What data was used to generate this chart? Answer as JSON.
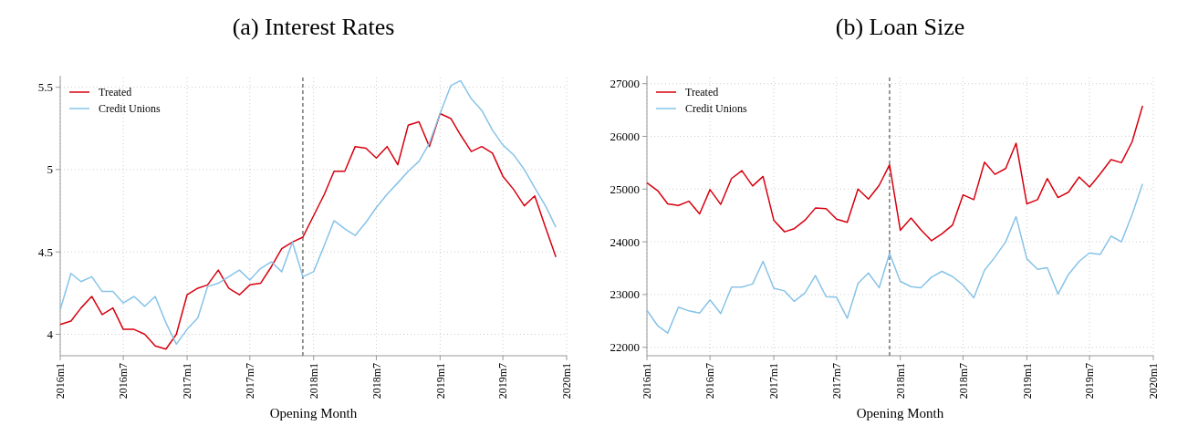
{
  "chart_data": [
    {
      "type": "line",
      "title": "(a) Interest Rates",
      "xlabel": "Opening Month",
      "x": [
        "2016-01",
        "2016-02",
        "2016-03",
        "2016-04",
        "2016-05",
        "2016-06",
        "2016-07",
        "2016-08",
        "2016-09",
        "2016-10",
        "2016-11",
        "2016-12",
        "2017-01",
        "2017-02",
        "2017-03",
        "2017-04",
        "2017-05",
        "2017-06",
        "2017-07",
        "2017-08",
        "2017-09",
        "2017-10",
        "2017-11",
        "2017-12",
        "2018-01",
        "2018-02",
        "2018-03",
        "2018-04",
        "2018-05",
        "2018-06",
        "2018-07",
        "2018-08",
        "2018-09",
        "2018-10",
        "2018-11",
        "2018-12",
        "2019-01",
        "2019-02",
        "2019-03",
        "2019-04",
        "2019-05",
        "2019-06",
        "2019-07",
        "2019-08",
        "2019-09",
        "2019-10",
        "2019-11",
        "2019-12"
      ],
      "xlim": [
        "2016-01",
        "2020-01"
      ],
      "xticks": [
        {
          "value": "2016-01",
          "label": "2016m1"
        },
        {
          "value": "2016-07",
          "label": "2016m7"
        },
        {
          "value": "2017-01",
          "label": "2017m1"
        },
        {
          "value": "2017-07",
          "label": "2017m7"
        },
        {
          "value": "2018-01",
          "label": "2018m1"
        },
        {
          "value": "2018-07",
          "label": "2018m7"
        },
        {
          "value": "2019-01",
          "label": "2019m1"
        },
        {
          "value": "2019-07",
          "label": "2019m7"
        },
        {
          "value": "2020-01",
          "label": "2020m1"
        }
      ],
      "ylim": [
        3.87,
        5.57
      ],
      "yticks": [
        4,
        4.5,
        5,
        5.5
      ],
      "grid": true,
      "legend": "top left",
      "ref_lines": [
        {
          "axis": "x",
          "value": "2017-12",
          "label": null,
          "line_style": "dashed",
          "color": "#777777"
        }
      ],
      "series": [
        {
          "name": "Treated",
          "color": "#d7000f",
          "values": [
            4.06,
            4.08,
            4.16,
            4.23,
            4.12,
            4.16,
            4.03,
            4.03,
            4.0,
            3.93,
            3.91,
            4.0,
            4.24,
            4.28,
            4.3,
            4.39,
            4.28,
            4.24,
            4.3,
            4.31,
            4.41,
            4.52,
            4.56,
            4.59,
            4.72,
            4.85,
            4.99,
            4.99,
            5.14,
            5.13,
            5.07,
            5.14,
            5.03,
            5.27,
            5.29,
            5.14,
            5.34,
            5.31,
            5.21,
            5.11,
            5.14,
            5.1,
            4.96,
            4.88,
            4.78,
            4.84,
            4.65,
            4.47
          ]
        },
        {
          "name": "Credit Unions",
          "color": "#87c3e8",
          "values": [
            4.15,
            4.37,
            4.32,
            4.35,
            4.26,
            4.26,
            4.19,
            4.23,
            4.17,
            4.23,
            4.07,
            3.94,
            4.03,
            4.1,
            4.29,
            4.31,
            4.35,
            4.39,
            4.33,
            4.4,
            4.44,
            4.38,
            4.56,
            4.35,
            4.38,
            4.54,
            4.69,
            4.64,
            4.6,
            4.68,
            4.77,
            4.85,
            4.92,
            4.99,
            5.05,
            5.16,
            5.34,
            5.51,
            5.54,
            5.43,
            5.36,
            5.24,
            5.15,
            5.09,
            5.0,
            4.89,
            4.78,
            4.65
          ]
        }
      ]
    },
    {
      "type": "line",
      "title": "(b) Loan Size",
      "xlabel": "Opening Month",
      "x": [
        "2016-01",
        "2016-02",
        "2016-03",
        "2016-04",
        "2016-05",
        "2016-06",
        "2016-07",
        "2016-08",
        "2016-09",
        "2016-10",
        "2016-11",
        "2016-12",
        "2017-01",
        "2017-02",
        "2017-03",
        "2017-04",
        "2017-05",
        "2017-06",
        "2017-07",
        "2017-08",
        "2017-09",
        "2017-10",
        "2017-11",
        "2017-12",
        "2018-01",
        "2018-02",
        "2018-03",
        "2018-04",
        "2018-05",
        "2018-06",
        "2018-07",
        "2018-08",
        "2018-09",
        "2018-10",
        "2018-11",
        "2018-12",
        "2019-01",
        "2019-02",
        "2019-03",
        "2019-04",
        "2019-05",
        "2019-06",
        "2019-07",
        "2019-08",
        "2019-09",
        "2019-10",
        "2019-11",
        "2019-12"
      ],
      "xlim": [
        "2016-01",
        "2020-01"
      ],
      "xticks": [
        {
          "value": "2016-01",
          "label": "2016m1"
        },
        {
          "value": "2016-07",
          "label": "2016m7"
        },
        {
          "value": "2017-01",
          "label": "2017m1"
        },
        {
          "value": "2017-07",
          "label": "2017m7"
        },
        {
          "value": "2018-01",
          "label": "2018m1"
        },
        {
          "value": "2018-07",
          "label": "2018m7"
        },
        {
          "value": "2019-01",
          "label": "2019m1"
        },
        {
          "value": "2019-07",
          "label": "2019m7"
        },
        {
          "value": "2020-01",
          "label": "2020m1"
        }
      ],
      "ylim": [
        21840,
        27150
      ],
      "yticks": [
        22000,
        23000,
        24000,
        25000,
        26000,
        27000
      ],
      "grid": true,
      "legend": "top left",
      "ref_lines": [
        {
          "axis": "x",
          "value": "2017-12",
          "label": null,
          "line_style": "dashed",
          "color": "#777777"
        }
      ],
      "series": [
        {
          "name": "Treated",
          "color": "#d7000f",
          "values": [
            25120,
            24970,
            24720,
            24690,
            24770,
            24530,
            24990,
            24710,
            25200,
            25350,
            25060,
            25240,
            24410,
            24190,
            24250,
            24410,
            24640,
            24630,
            24430,
            24370,
            25000,
            24810,
            25070,
            25460,
            24220,
            24450,
            24230,
            24020,
            24150,
            24320,
            24890,
            24800,
            25510,
            25280,
            25390,
            25870,
            24720,
            24800,
            25200,
            24840,
            24940,
            25230,
            25040,
            25290,
            25560,
            25500,
            25900,
            26580
          ]
        },
        {
          "name": "Credit Unions",
          "color": "#87c3e8",
          "values": [
            22700,
            22410,
            22270,
            22760,
            22690,
            22650,
            22900,
            22640,
            23140,
            23140,
            23200,
            23630,
            23120,
            23070,
            22870,
            23030,
            23360,
            22960,
            22950,
            22550,
            23210,
            23410,
            23130,
            23780,
            23250,
            23150,
            23130,
            23330,
            23440,
            23340,
            23180,
            22940,
            23460,
            23710,
            24000,
            24480,
            23680,
            23480,
            23510,
            23010,
            23380,
            23630,
            23790,
            23760,
            24110,
            24000,
            24520,
            25100
          ]
        }
      ]
    }
  ]
}
